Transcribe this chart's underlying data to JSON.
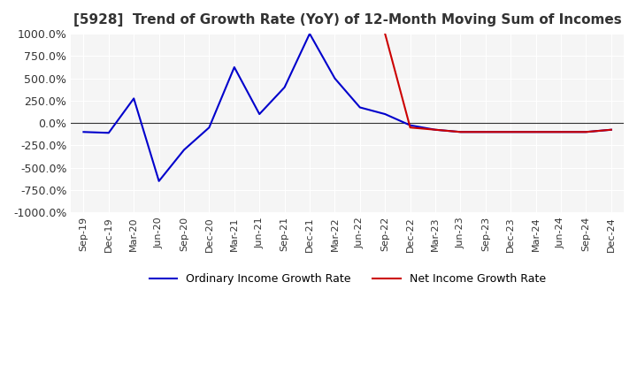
{
  "title": "[5928]  Trend of Growth Rate (YoY) of 12-Month Moving Sum of Incomes",
  "ylim": [
    -1000,
    1000
  ],
  "yticks": [
    -1000,
    -750,
    -500,
    -250,
    0,
    250,
    500,
    750,
    1000
  ],
  "ytick_labels": [
    "-1000.0%",
    "-750.0%",
    "-500.0%",
    "-250.0%",
    "0.0%",
    "250.0%",
    "500.0%",
    "750.0%",
    "1000.0%"
  ],
  "background_color": "#ffffff",
  "plot_bg_color": "#f5f5f5",
  "grid_color": "#ffffff",
  "ordinary_color": "#0000cc",
  "net_color": "#cc0000",
  "legend_ordinary": "Ordinary Income Growth Rate",
  "legend_net": "Net Income Growth Rate",
  "xtick_labels": [
    "Sep-19",
    "Dec-19",
    "Mar-20",
    "Jun-20",
    "Sep-20",
    "Dec-20",
    "Mar-21",
    "Jun-21",
    "Sep-21",
    "Dec-21",
    "Mar-22",
    "Jun-22",
    "Sep-22",
    "Dec-22",
    "Mar-23",
    "Jun-23",
    "Sep-23",
    "Dec-23",
    "Mar-24",
    "Jun-24",
    "Sep-24",
    "Dec-24"
  ],
  "ordinary_x": [
    0,
    1,
    2,
    3,
    4,
    5,
    6,
    7,
    8,
    9,
    10,
    11,
    12,
    13,
    14,
    15,
    16,
    17,
    18,
    19,
    20,
    21
  ],
  "ordinary_y": [
    -100,
    -110,
    275,
    -650,
    -300,
    -50,
    625,
    100,
    400,
    1000,
    500,
    175,
    100,
    -25,
    -75,
    -100,
    -100,
    -100,
    -100,
    -100,
    -100,
    -75
  ],
  "net_x": [
    12,
    13,
    14,
    15,
    16,
    17,
    18,
    19,
    20,
    21
  ],
  "net_y": [
    1000,
    -50,
    -75,
    -100,
    -100,
    -100,
    -100,
    -100,
    -100,
    -75
  ]
}
